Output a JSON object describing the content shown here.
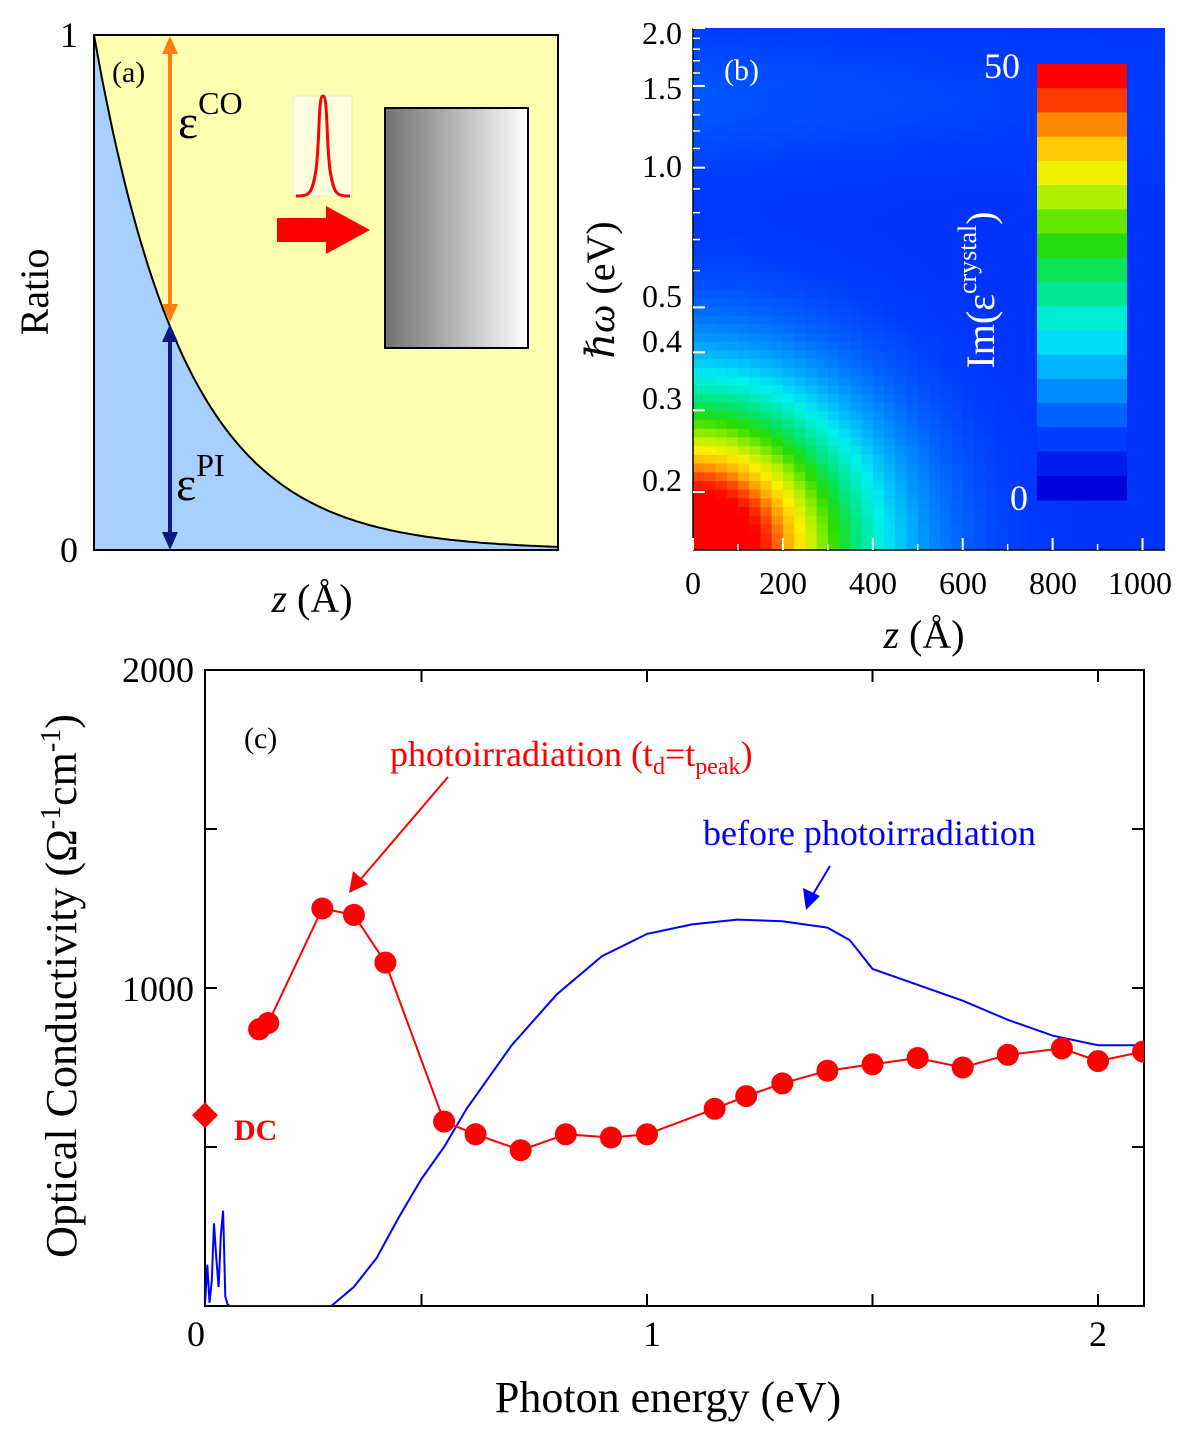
{
  "colors": {
    "pi_fill": "#a8d0ff",
    "co_fill": "#ffffb0",
    "orange": "#ff7f0e",
    "navy": "#0b1a80",
    "red": "#ff0000",
    "blue": "#0000ff",
    "white": "#ffffff",
    "black": "#000000"
  },
  "chart_data": [
    {
      "panel": "(a)",
      "type": "area",
      "xlabel": "z (Å)",
      "ylabel": "Ratio",
      "ylim": [
        0,
        1
      ],
      "yticks": [
        "0",
        "1"
      ],
      "curve": "exponential decay from 1 at z=0 toward 0",
      "regions": [
        "ε^PI (below curve)",
        "ε^CO (above curve)"
      ],
      "labels": {
        "panel": "(a)",
        "eps_co_base": "ε",
        "eps_co_sup": "CO",
        "eps_pi_base": "ε",
        "eps_pi_sup": "PI",
        "tick_0": "0",
        "tick_1": "1"
      }
    },
    {
      "panel": "(b)",
      "type": "heatmap",
      "xlabel": "z (Å)",
      "ylabel": "ℏω (eV)",
      "xlim": [
        0,
        1050
      ],
      "ylim": [
        0.15,
        2.0
      ],
      "yscale": "log",
      "xticks": [
        0,
        200,
        400,
        600,
        800,
        1000
      ],
      "yticks": [
        0.2,
        0.3,
        0.4,
        0.5,
        1.0,
        1.5,
        2.0
      ],
      "colorbar": {
        "label": "Im(ε^crystal)",
        "min": 0,
        "max": 50,
        "levels": 18
      },
      "labels": {
        "panel": "(b)",
        "cb_max": "50",
        "cb_min": "0",
        "cb_pre": "Im(",
        "cb_eps": "ε",
        "cb_sup": "crystal",
        "cb_post": ")",
        "xt": [
          "0",
          "200",
          "400",
          "600",
          "800",
          "1000"
        ],
        "yt": [
          "0.2",
          "0.3",
          "0.4",
          "0.5",
          "1.0",
          "1.5",
          "2.0"
        ],
        "xlabel_unit": "(Å)",
        "ylabel_unit": "(eV)"
      }
    },
    {
      "panel": "(c)",
      "type": "line",
      "xlabel": "Photon energy (eV)",
      "ylabel": "Optical Conductivity (Ω-1cm-1)",
      "xlim": [
        0,
        2.1
      ],
      "ylim": [
        0,
        2000
      ],
      "xticks": [
        0,
        1,
        2
      ],
      "yticks": [
        1000,
        2000
      ],
      "series": [
        {
          "name": "photoirradiation (td=tpeak)",
          "color": "#ff0000",
          "marker": "circle",
          "x": [
            0.14,
            0.16,
            0.28,
            0.35,
            0.42,
            0.55,
            0.62,
            0.72,
            0.82,
            0.92,
            1.0,
            1.15,
            1.22,
            1.3,
            1.4,
            1.5,
            1.6,
            1.7,
            1.8,
            1.92,
            2.0,
            2.1
          ],
          "y": [
            870,
            890,
            1250,
            1230,
            1080,
            580,
            540,
            490,
            540,
            530,
            540,
            620,
            660,
            700,
            740,
            760,
            780,
            750,
            790,
            810,
            770,
            800
          ]
        },
        {
          "name": "before photoirradiation",
          "color": "#0000ff",
          "marker": "none",
          "x": [
            0.0,
            0.02,
            0.025,
            0.03,
            0.035,
            0.04,
            0.045,
            0.05,
            0.055,
            0.06,
            0.065,
            0.07,
            0.075,
            0.08,
            0.09,
            0.1,
            0.11,
            0.3,
            0.35,
            0.4,
            0.45,
            0.5,
            0.55,
            0.6,
            0.7,
            0.8,
            0.9,
            1.0,
            1.1,
            1.2,
            1.3,
            1.4,
            1.45,
            1.5,
            1.6,
            1.7,
            1.8,
            1.9,
            2.0,
            2.1
          ],
          "y": [
            0,
            5,
            130,
            10,
            80,
            260,
            150,
            60,
            220,
            300,
            30,
            5,
            0,
            0,
            0,
            0,
            0,
            0,
            60,
            150,
            280,
            400,
            500,
            620,
            820,
            980,
            1100,
            1170,
            1200,
            1215,
            1210,
            1190,
            1150,
            1060,
            1010,
            960,
            900,
            850,
            820,
            820
          ]
        },
        {
          "name": "DC",
          "color": "#ff0000",
          "marker": "diamond",
          "x": [
            0.0
          ],
          "y": [
            600
          ]
        }
      ],
      "labels": {
        "panel": "(c)",
        "photo_pre": "photoirradiation (t",
        "photo_sub1": "d",
        "photo_mid": "=t",
        "photo_sub2": "peak",
        "photo_post": ")",
        "before": "before photoirradiation",
        "dc": "DC",
        "xlabel": "Photon energy (eV)",
        "ylabel_pre": "Optical Conductivity (Ω",
        "ylabel_sup1": "-1",
        "ylabel_mid": "cm",
        "ylabel_sup2": "-1",
        "ylabel_post": ")",
        "yt": [
          "1000",
          "2000"
        ],
        "xt": [
          "0",
          "1",
          "2"
        ]
      }
    }
  ]
}
